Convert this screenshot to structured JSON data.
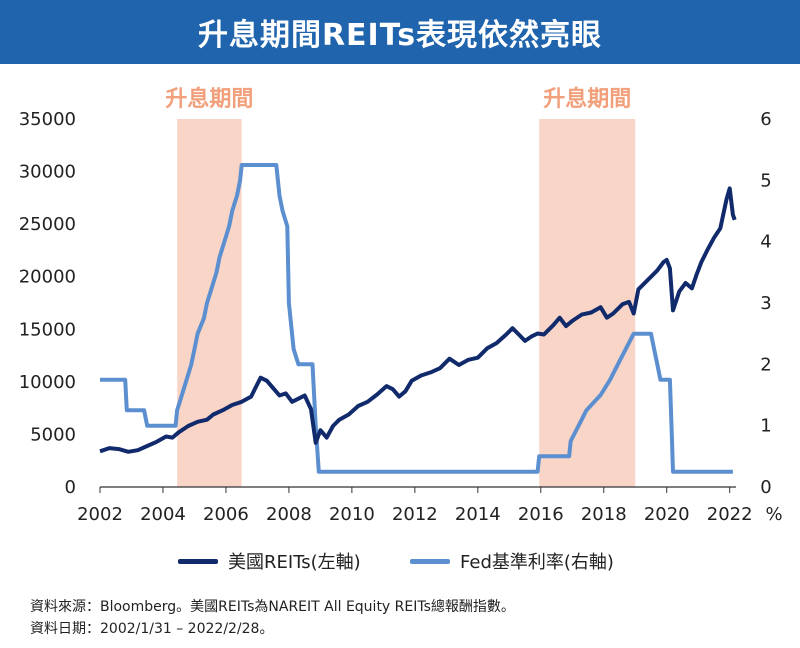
{
  "title": "升息期間REITs表現依然亮眼",
  "source": {
    "line1": "資料來源：Bloomberg。美國REITs為NAREIT All Equity REITs總報酬指數。",
    "line2": "資料日期：2002/1/31 – 2022/2/28。"
  },
  "colors": {
    "reits": "#102a6b",
    "fed": "#5b8fd0",
    "shade": "#f9d5c8",
    "shade_label": "#f2a07b",
    "title_bg": "#1f64ac"
  },
  "chart_data": {
    "type": "line",
    "x_ticks": [
      "2002",
      "2004",
      "2006",
      "2008",
      "2010",
      "2012",
      "2014",
      "2016",
      "2018",
      "2020",
      "2022"
    ],
    "y_left_ticks": [
      "0",
      "5000",
      "10000",
      "15000",
      "20000",
      "25000",
      "30000",
      "35000"
    ],
    "y_right_ticks": [
      "0",
      "1",
      "2",
      "3",
      "4",
      "5",
      "6"
    ],
    "y_right_unit": "%",
    "xlim": [
      2002.0,
      2022.2
    ],
    "ylim_left": [
      0,
      35000
    ],
    "ylim_right": [
      0,
      6
    ],
    "shaded_periods": [
      {
        "label": "升息期間",
        "start": 2004.45,
        "end": 2006.5
      },
      {
        "label": "升息期間",
        "start": 2015.95,
        "end": 2019.0
      }
    ],
    "legend": [
      "美國REITs(左軸)",
      "Fed基準利率(右軸)"
    ],
    "series": [
      {
        "name": "美國REITs(左軸)",
        "axis": "left",
        "points": [
          [
            2002.0,
            3400
          ],
          [
            2002.3,
            3700
          ],
          [
            2002.6,
            3600
          ],
          [
            2002.9,
            3350
          ],
          [
            2003.2,
            3500
          ],
          [
            2003.5,
            3900
          ],
          [
            2003.8,
            4300
          ],
          [
            2004.1,
            4800
          ],
          [
            2004.3,
            4700
          ],
          [
            2004.5,
            5200
          ],
          [
            2004.8,
            5800
          ],
          [
            2005.1,
            6200
          ],
          [
            2005.4,
            6400
          ],
          [
            2005.6,
            6900
          ],
          [
            2005.9,
            7300
          ],
          [
            2006.2,
            7800
          ],
          [
            2006.5,
            8100
          ],
          [
            2006.8,
            8600
          ],
          [
            2007.0,
            9800
          ],
          [
            2007.1,
            10400
          ],
          [
            2007.3,
            10100
          ],
          [
            2007.5,
            9400
          ],
          [
            2007.7,
            8700
          ],
          [
            2007.9,
            8900
          ],
          [
            2008.1,
            8100
          ],
          [
            2008.3,
            8400
          ],
          [
            2008.5,
            8700
          ],
          [
            2008.7,
            7400
          ],
          [
            2008.85,
            4200
          ],
          [
            2009.0,
            5400
          ],
          [
            2009.2,
            4700
          ],
          [
            2009.4,
            5800
          ],
          [
            2009.6,
            6400
          ],
          [
            2009.9,
            6900
          ],
          [
            2010.2,
            7700
          ],
          [
            2010.5,
            8100
          ],
          [
            2010.8,
            8800
          ],
          [
            2011.1,
            9600
          ],
          [
            2011.3,
            9300
          ],
          [
            2011.5,
            8600
          ],
          [
            2011.7,
            9100
          ],
          [
            2011.9,
            10100
          ],
          [
            2012.2,
            10600
          ],
          [
            2012.5,
            10900
          ],
          [
            2012.8,
            11300
          ],
          [
            2013.1,
            12200
          ],
          [
            2013.4,
            11600
          ],
          [
            2013.7,
            12100
          ],
          [
            2014.0,
            12300
          ],
          [
            2014.3,
            13200
          ],
          [
            2014.6,
            13700
          ],
          [
            2014.9,
            14500
          ],
          [
            2015.1,
            15100
          ],
          [
            2015.3,
            14500
          ],
          [
            2015.5,
            13900
          ],
          [
            2015.7,
            14300
          ],
          [
            2015.9,
            14600
          ],
          [
            2016.1,
            14500
          ],
          [
            2016.4,
            15400
          ],
          [
            2016.6,
            16100
          ],
          [
            2016.8,
            15300
          ],
          [
            2017.0,
            15800
          ],
          [
            2017.3,
            16400
          ],
          [
            2017.6,
            16600
          ],
          [
            2017.9,
            17100
          ],
          [
            2018.1,
            16100
          ],
          [
            2018.3,
            16500
          ],
          [
            2018.6,
            17400
          ],
          [
            2018.8,
            17600
          ],
          [
            2018.95,
            16500
          ],
          [
            2019.1,
            18800
          ],
          [
            2019.4,
            19700
          ],
          [
            2019.7,
            20600
          ],
          [
            2019.9,
            21400
          ],
          [
            2020.0,
            21600
          ],
          [
            2020.1,
            20800
          ],
          [
            2020.2,
            16800
          ],
          [
            2020.4,
            18600
          ],
          [
            2020.6,
            19400
          ],
          [
            2020.8,
            18900
          ],
          [
            2020.95,
            20200
          ],
          [
            2021.1,
            21400
          ],
          [
            2021.3,
            22600
          ],
          [
            2021.5,
            23700
          ],
          [
            2021.7,
            24600
          ],
          [
            2021.9,
            27400
          ],
          [
            2022.0,
            28400
          ],
          [
            2022.1,
            25900
          ],
          [
            2022.16,
            25400
          ]
        ]
      },
      {
        "name": "Fed基準利率(右軸)",
        "axis": "right",
        "points": [
          [
            2002.0,
            1.75
          ],
          [
            2002.8,
            1.75
          ],
          [
            2002.85,
            1.25
          ],
          [
            2003.4,
            1.25
          ],
          [
            2003.5,
            1.0
          ],
          [
            2004.4,
            1.0
          ],
          [
            2004.45,
            1.25
          ],
          [
            2004.6,
            1.5
          ],
          [
            2004.75,
            1.75
          ],
          [
            2004.9,
            2.0
          ],
          [
            2005.0,
            2.25
          ],
          [
            2005.1,
            2.5
          ],
          [
            2005.3,
            2.75
          ],
          [
            2005.4,
            3.0
          ],
          [
            2005.55,
            3.25
          ],
          [
            2005.7,
            3.5
          ],
          [
            2005.8,
            3.75
          ],
          [
            2005.95,
            4.0
          ],
          [
            2006.1,
            4.25
          ],
          [
            2006.2,
            4.5
          ],
          [
            2006.35,
            4.75
          ],
          [
            2006.45,
            5.0
          ],
          [
            2006.5,
            5.25
          ],
          [
            2007.6,
            5.25
          ],
          [
            2007.7,
            4.75
          ],
          [
            2007.8,
            4.5
          ],
          [
            2007.95,
            4.25
          ],
          [
            2008.0,
            3.0
          ],
          [
            2008.15,
            2.25
          ],
          [
            2008.3,
            2.0
          ],
          [
            2008.75,
            2.0
          ],
          [
            2008.8,
            1.5
          ],
          [
            2008.85,
            1.0
          ],
          [
            2008.95,
            0.25
          ],
          [
            2015.9,
            0.25
          ],
          [
            2015.95,
            0.5
          ],
          [
            2016.9,
            0.5
          ],
          [
            2016.95,
            0.75
          ],
          [
            2017.2,
            1.0
          ],
          [
            2017.45,
            1.25
          ],
          [
            2017.9,
            1.5
          ],
          [
            2018.2,
            1.75
          ],
          [
            2018.45,
            2.0
          ],
          [
            2018.7,
            2.25
          ],
          [
            2018.95,
            2.5
          ],
          [
            2019.5,
            2.5
          ],
          [
            2019.6,
            2.25
          ],
          [
            2019.7,
            2.0
          ],
          [
            2019.8,
            1.75
          ],
          [
            2020.1,
            1.75
          ],
          [
            2020.15,
            1.0
          ],
          [
            2020.2,
            0.25
          ],
          [
            2022.1,
            0.25
          ]
        ]
      }
    ]
  }
}
